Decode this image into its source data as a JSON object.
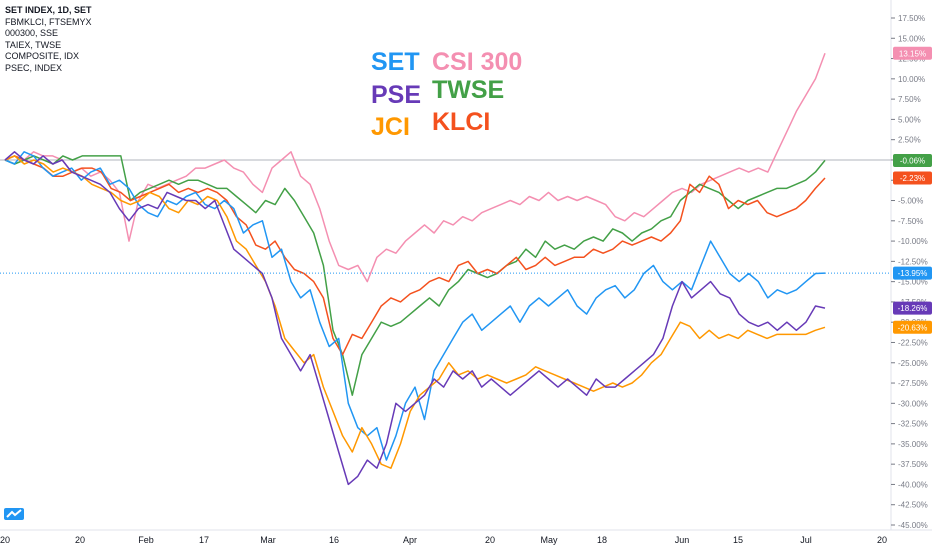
{
  "symbols": [
    "SET INDEX, 1D, SET",
    "FBMKLCI, FTSEMYX",
    "000300, SSE",
    "TAIEX, TWSE",
    "COMPOSITE, IDX",
    "PSEC, INDEX"
  ],
  "legend_labels": {
    "set": "SET",
    "csi": "CSI 300",
    "pse": "PSE",
    "twse": "TWSE",
    "jci": "JCI",
    "klci": "KLCI"
  },
  "colors": {
    "set": "#2196f3",
    "csi": "#f48fb1",
    "pse": "#673ab7",
    "twse": "#43a047",
    "jci": "#ff9800",
    "klci": "#f4511e",
    "axis": "#787b86",
    "grid_zero": "#b2b5be"
  },
  "icons": {
    "logo": "tradingview-logo-icon"
  },
  "chart_data": {
    "type": "line",
    "title": "",
    "xlabel": "",
    "ylabel": "",
    "ylim": [
      -45,
      17.5
    ],
    "y_unit": "%",
    "y_ticks": [
      "17.50%",
      "15.00%",
      "12.50%",
      "10.00%",
      "7.50%",
      "5.00%",
      "2.50%",
      "0.00%",
      "-2.50%",
      "-5.00%",
      "-7.50%",
      "-10.00%",
      "-12.50%",
      "-15.00%",
      "-17.50%",
      "-20.00%",
      "-22.50%",
      "-25.00%",
      "-27.50%",
      "-30.00%",
      "-32.50%",
      "-35.00%",
      "-37.50%",
      "-40.00%",
      "-42.50%",
      "-45.00%"
    ],
    "x_ticks": [
      "20",
      "20",
      "Feb",
      "17",
      "Mar",
      "16",
      "Apr",
      "20",
      "May",
      "18",
      "Jun",
      "15",
      "Jul",
      "20"
    ],
    "x_tick_pos": [
      5,
      80,
      146,
      204,
      268,
      334,
      410,
      490,
      549,
      602,
      682,
      738,
      806,
      882
    ],
    "grid": false,
    "series": [
      {
        "key": "set",
        "name": "SET",
        "last": "-13.95%",
        "last_value": -13.95,
        "values": [
          0,
          -0.5,
          1,
          0.5,
          -1,
          -2,
          -1.5,
          -1,
          -2.5,
          -1.5,
          -1,
          -3,
          -2.5,
          -3.5,
          -5.5,
          -6.5,
          -7,
          -5,
          -5.5,
          -4.5,
          -4,
          -5.5,
          -6,
          -5,
          -6,
          -9,
          -8,
          -7.5,
          -12,
          -11,
          -15,
          -17,
          -16,
          -20,
          -23,
          -22,
          -30,
          -33,
          -34,
          -33,
          -37,
          -34,
          -30,
          -28,
          -32,
          -26,
          -24,
          -22,
          -20,
          -19,
          -21,
          -20,
          -19,
          -18,
          -20,
          -18,
          -17,
          -18,
          -17,
          -16,
          -18,
          -19,
          -17,
          -16,
          -15.5,
          -17,
          -16,
          -14,
          -13,
          -15,
          -16,
          -15,
          -16,
          -13,
          -10,
          -12,
          -14,
          -15,
          -14,
          -15,
          -17,
          -16,
          -16.5,
          -16,
          -15,
          -14,
          -13.95
        ]
      },
      {
        "key": "csi",
        "name": "CSI 300",
        "last": "13.15%",
        "last_value": 13.15,
        "values": [
          0,
          0.5,
          0,
          1,
          0.5,
          0.5,
          0,
          -1.5,
          -1,
          -2,
          -1.5,
          -2.5,
          -4,
          -10,
          -5,
          -3,
          -3.5,
          -3,
          -2.5,
          -2,
          -1,
          -1,
          -0.5,
          0,
          -1,
          -1.5,
          -3,
          -4,
          -1,
          0,
          1,
          -2,
          -3,
          -6,
          -10,
          -13,
          -13.5,
          -13,
          -15,
          -12,
          -11,
          -11.5,
          -10,
          -9,
          -8,
          -9,
          -7.5,
          -8,
          -7,
          -7.5,
          -6.5,
          -6,
          -5.5,
          -5,
          -5.5,
          -4.5,
          -5,
          -4,
          -5,
          -4.5,
          -5,
          -4.5,
          -5,
          -5.5,
          -7,
          -7.5,
          -6.5,
          -7,
          -6,
          -5,
          -4,
          -3.5,
          -4,
          -3,
          -2.5,
          -2,
          -1.5,
          -1,
          -1.5,
          -1,
          -1.5,
          1,
          3.5,
          6,
          8,
          10,
          13.15
        ]
      },
      {
        "key": "pse",
        "name": "PSE",
        "last": "-18.26%",
        "last_value": -18.26,
        "values": [
          0,
          1,
          0,
          -0.5,
          0.5,
          -0.5,
          0,
          -1.5,
          -2,
          -2.5,
          -3,
          -4,
          -6,
          -7.5,
          -6,
          -5.5,
          -6,
          -4,
          -4.5,
          -5,
          -5,
          -6,
          -5,
          -8,
          -11,
          -12,
          -13,
          -14,
          -17,
          -22,
          -24,
          -26,
          -24,
          -28,
          -32,
          -36,
          -40,
          -39,
          -37,
          -38,
          -35,
          -30,
          -31,
          -30,
          -29,
          -27,
          -28,
          -26,
          -27,
          -26,
          -28,
          -27,
          -28,
          -29,
          -28,
          -27,
          -26,
          -27,
          -28,
          -27,
          -28,
          -29,
          -27,
          -28,
          -28,
          -27,
          -26,
          -25,
          -24,
          -22,
          -18,
          -15,
          -17,
          -16,
          -15,
          -16.5,
          -17,
          -19,
          -20,
          -20.5,
          -20,
          -21,
          -20,
          -21,
          -20,
          -18,
          -18.26
        ]
      },
      {
        "key": "twse",
        "name": "TWSE",
        "last": "-0.06%",
        "last_value": -0.06,
        "values": [
          0,
          -0.5,
          0,
          0.5,
          0,
          -0.5,
          0.5,
          0,
          0.5,
          0.5,
          0.5,
          0.5,
          0.5,
          -5,
          -4,
          -3.5,
          -3,
          -2.5,
          -3,
          -2.5,
          -2.5,
          -3,
          -3.5,
          -3.5,
          -4.5,
          -5.5,
          -6.5,
          -5,
          -5.5,
          -3.5,
          -5,
          -7,
          -9,
          -13,
          -21,
          -24,
          -29,
          -24,
          -22,
          -20,
          -20.5,
          -20,
          -19,
          -18,
          -17,
          -18,
          -16,
          -15,
          -13.5,
          -14,
          -14.5,
          -14,
          -13,
          -12.5,
          -11,
          -12,
          -10,
          -11,
          -10.5,
          -11,
          -10,
          -9.5,
          -10,
          -8.5,
          -9,
          -10,
          -9,
          -8.5,
          -7.5,
          -7,
          -5,
          -4,
          -3,
          -3.5,
          -4,
          -5,
          -6,
          -5,
          -4.5,
          -4,
          -3.5,
          -3.5,
          -3,
          -2.5,
          -1.5,
          -0.06
        ]
      },
      {
        "key": "jci",
        "name": "JCI",
        "last": "-20.63%",
        "last_value": -20.63,
        "values": [
          0,
          0.5,
          -0.5,
          0,
          -0.5,
          -1.5,
          -1,
          -1.5,
          -2,
          -3,
          -3.5,
          -4,
          -5,
          -5.5,
          -5,
          -4,
          -4.5,
          -6,
          -6.5,
          -5,
          -5.5,
          -4.5,
          -5,
          -7,
          -10,
          -11,
          -13,
          -15,
          -18,
          -22,
          -23.5,
          -25,
          -24,
          -28,
          -31,
          -34,
          -36,
          -33,
          -35,
          -37.5,
          -38,
          -35,
          -31,
          -29,
          -28,
          -27,
          -25,
          -26.5,
          -26,
          -27,
          -26.5,
          -27,
          -27.5,
          -27,
          -26.5,
          -25.5,
          -26,
          -26.5,
          -27,
          -27.5,
          -28,
          -28.5,
          -28,
          -27.5,
          -28,
          -27.5,
          -26.5,
          -25,
          -24,
          -22,
          -20,
          -20.5,
          -22,
          -21,
          -22,
          -21.5,
          -22,
          -21,
          -21.5,
          -22,
          -21.5,
          -21.5,
          -21.5,
          -21.5,
          -21,
          -20.63
        ]
      },
      {
        "key": "klci",
        "name": "KLCI",
        "last": "-2.23%",
        "last_value": -2.23,
        "values": [
          0,
          0.5,
          0,
          -0.5,
          -1,
          -2,
          -2,
          -1.5,
          -1,
          -1,
          -1.5,
          -3.5,
          -4,
          -5,
          -4.5,
          -4,
          -3.5,
          -3,
          -4,
          -3.5,
          -4,
          -3.5,
          -4,
          -5,
          -7,
          -8,
          -10.5,
          -11,
          -10,
          -12,
          -13.5,
          -14,
          -15,
          -17,
          -22,
          -24,
          -21.5,
          -22,
          -20,
          -18,
          -17,
          -17.5,
          -16.5,
          -16,
          -15,
          -14.5,
          -15,
          -13,
          -12.5,
          -14,
          -13.5,
          -14,
          -13,
          -12,
          -13.5,
          -13,
          -12,
          -13,
          -12.5,
          -12,
          -12,
          -11,
          -11.5,
          -11,
          -10,
          -10.5,
          -10,
          -9.5,
          -10,
          -9,
          -7.5,
          -3,
          -4,
          -2,
          -3,
          -6,
          -5,
          -5.5,
          -5,
          -6.5,
          -7,
          -6.5,
          -6,
          -5,
          -3.5,
          -2.23
        ]
      }
    ]
  }
}
